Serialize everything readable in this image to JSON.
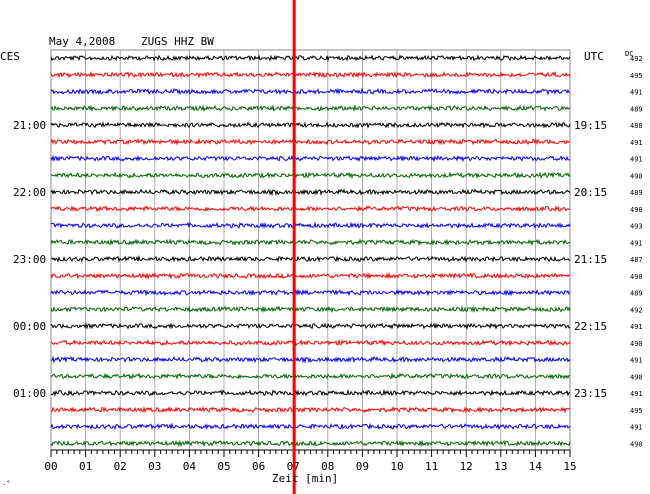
{
  "header": {
    "date": "May 4,2008",
    "station": "ZUGS HHZ BW",
    "left_zone": "CES",
    "right_zone": "UTC",
    "dc_label": "DC"
  },
  "chart_data": {
    "type": "line",
    "title": "May 4,2008  ZUGS HHZ BW",
    "xlabel": "Zeit [min]",
    "xlim": [
      0,
      15
    ],
    "x_ticks": [
      "00",
      "01",
      "02",
      "03",
      "04",
      "05",
      "06",
      "07",
      "08",
      "09",
      "10",
      "11",
      "12",
      "13",
      "14",
      "15"
    ],
    "left_hour_labels": [
      "21:00",
      "22:00",
      "23:00",
      "00:00",
      "01:00"
    ],
    "right_hour_labels": [
      "19:15",
      "20:15",
      "21:15",
      "22:15",
      "23:15"
    ],
    "trace_colors": [
      "#000000",
      "#ff0000",
      "#0000ff",
      "#006400"
    ],
    "dc_values": [
      "492",
      "495",
      "491",
      "489",
      "488",
      "491",
      "491",
      "490",
      "489",
      "490",
      "493",
      "491",
      "487",
      "490",
      "489",
      "492",
      "491",
      "490",
      "491",
      "490",
      "491",
      "495",
      "491",
      "490"
    ],
    "marker": {
      "x_min": 7.0,
      "color": "#ff0000"
    },
    "grid": true
  },
  "footer": {
    "corner_mark": "·˚"
  }
}
